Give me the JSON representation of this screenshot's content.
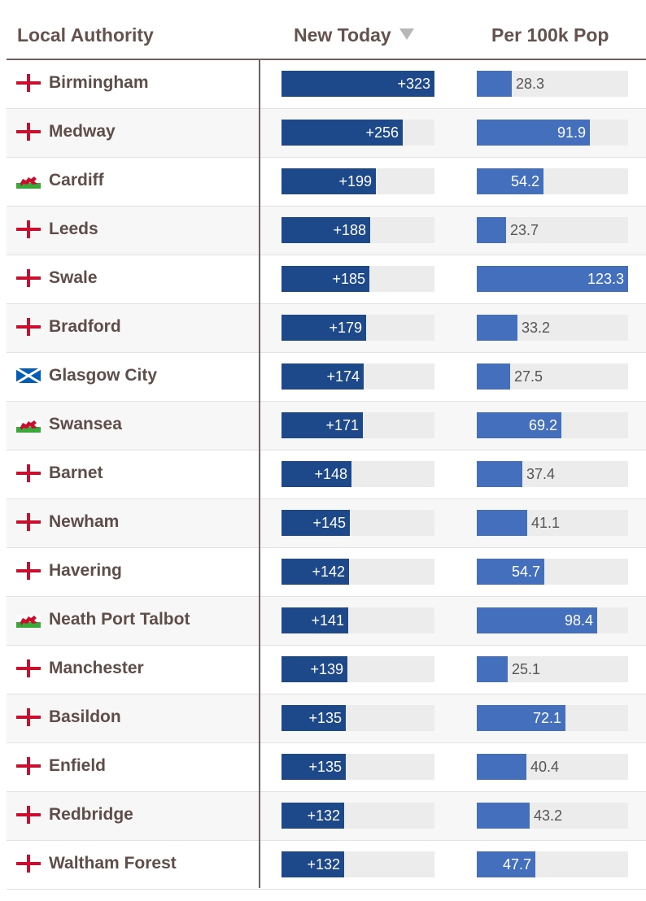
{
  "colors": {
    "today_bar": "#1d4889",
    "per_bar": "#436fbd",
    "track": "#ececec",
    "england_cross": "#c8102e",
    "scotland": "#005eb8",
    "wales_green": "#3aa83a",
    "wales_dragon": "#c8102e"
  },
  "header": {
    "authority": "Local Authority",
    "new_today": "New Today",
    "per_100k": "Per 100k Pop",
    "sort_icon": "sort-desc-triangle-icon"
  },
  "scale": {
    "today_max": 323,
    "per_max": 123.3
  },
  "rows": [
    {
      "nation": "england",
      "name": "Birmingham",
      "today": 323,
      "today_label": "+323",
      "per": 28.3,
      "per_label": "28.3"
    },
    {
      "nation": "england",
      "name": "Medway",
      "today": 256,
      "today_label": "+256",
      "per": 91.9,
      "per_label": "91.9"
    },
    {
      "nation": "wales",
      "name": "Cardiff",
      "today": 199,
      "today_label": "+199",
      "per": 54.2,
      "per_label": "54.2"
    },
    {
      "nation": "england",
      "name": "Leeds",
      "today": 188,
      "today_label": "+188",
      "per": 23.7,
      "per_label": "23.7"
    },
    {
      "nation": "england",
      "name": "Swale",
      "today": 185,
      "today_label": "+185",
      "per": 123.3,
      "per_label": "123.3"
    },
    {
      "nation": "england",
      "name": "Bradford",
      "today": 179,
      "today_label": "+179",
      "per": 33.2,
      "per_label": "33.2"
    },
    {
      "nation": "scotland",
      "name": "Glasgow City",
      "today": 174,
      "today_label": "+174",
      "per": 27.5,
      "per_label": "27.5"
    },
    {
      "nation": "wales",
      "name": "Swansea",
      "today": 171,
      "today_label": "+171",
      "per": 69.2,
      "per_label": "69.2"
    },
    {
      "nation": "england",
      "name": "Barnet",
      "today": 148,
      "today_label": "+148",
      "per": 37.4,
      "per_label": "37.4"
    },
    {
      "nation": "england",
      "name": "Newham",
      "today": 145,
      "today_label": "+145",
      "per": 41.1,
      "per_label": "41.1"
    },
    {
      "nation": "england",
      "name": "Havering",
      "today": 142,
      "today_label": "+142",
      "per": 54.7,
      "per_label": "54.7"
    },
    {
      "nation": "wales",
      "name": "Neath Port Talbot",
      "today": 141,
      "today_label": "+141",
      "per": 98.4,
      "per_label": "98.4"
    },
    {
      "nation": "england",
      "name": "Manchester",
      "today": 139,
      "today_label": "+139",
      "per": 25.1,
      "per_label": "25.1"
    },
    {
      "nation": "england",
      "name": "Basildon",
      "today": 135,
      "today_label": "+135",
      "per": 72.1,
      "per_label": "72.1"
    },
    {
      "nation": "england",
      "name": "Enfield",
      "today": 135,
      "today_label": "+135",
      "per": 40.4,
      "per_label": "40.4"
    },
    {
      "nation": "england",
      "name": "Redbridge",
      "today": 132,
      "today_label": "+132",
      "per": 43.2,
      "per_label": "43.2"
    },
    {
      "nation": "england",
      "name": "Waltham Forest",
      "today": 132,
      "today_label": "+132",
      "per": 47.7,
      "per_label": "47.7"
    }
  ]
}
